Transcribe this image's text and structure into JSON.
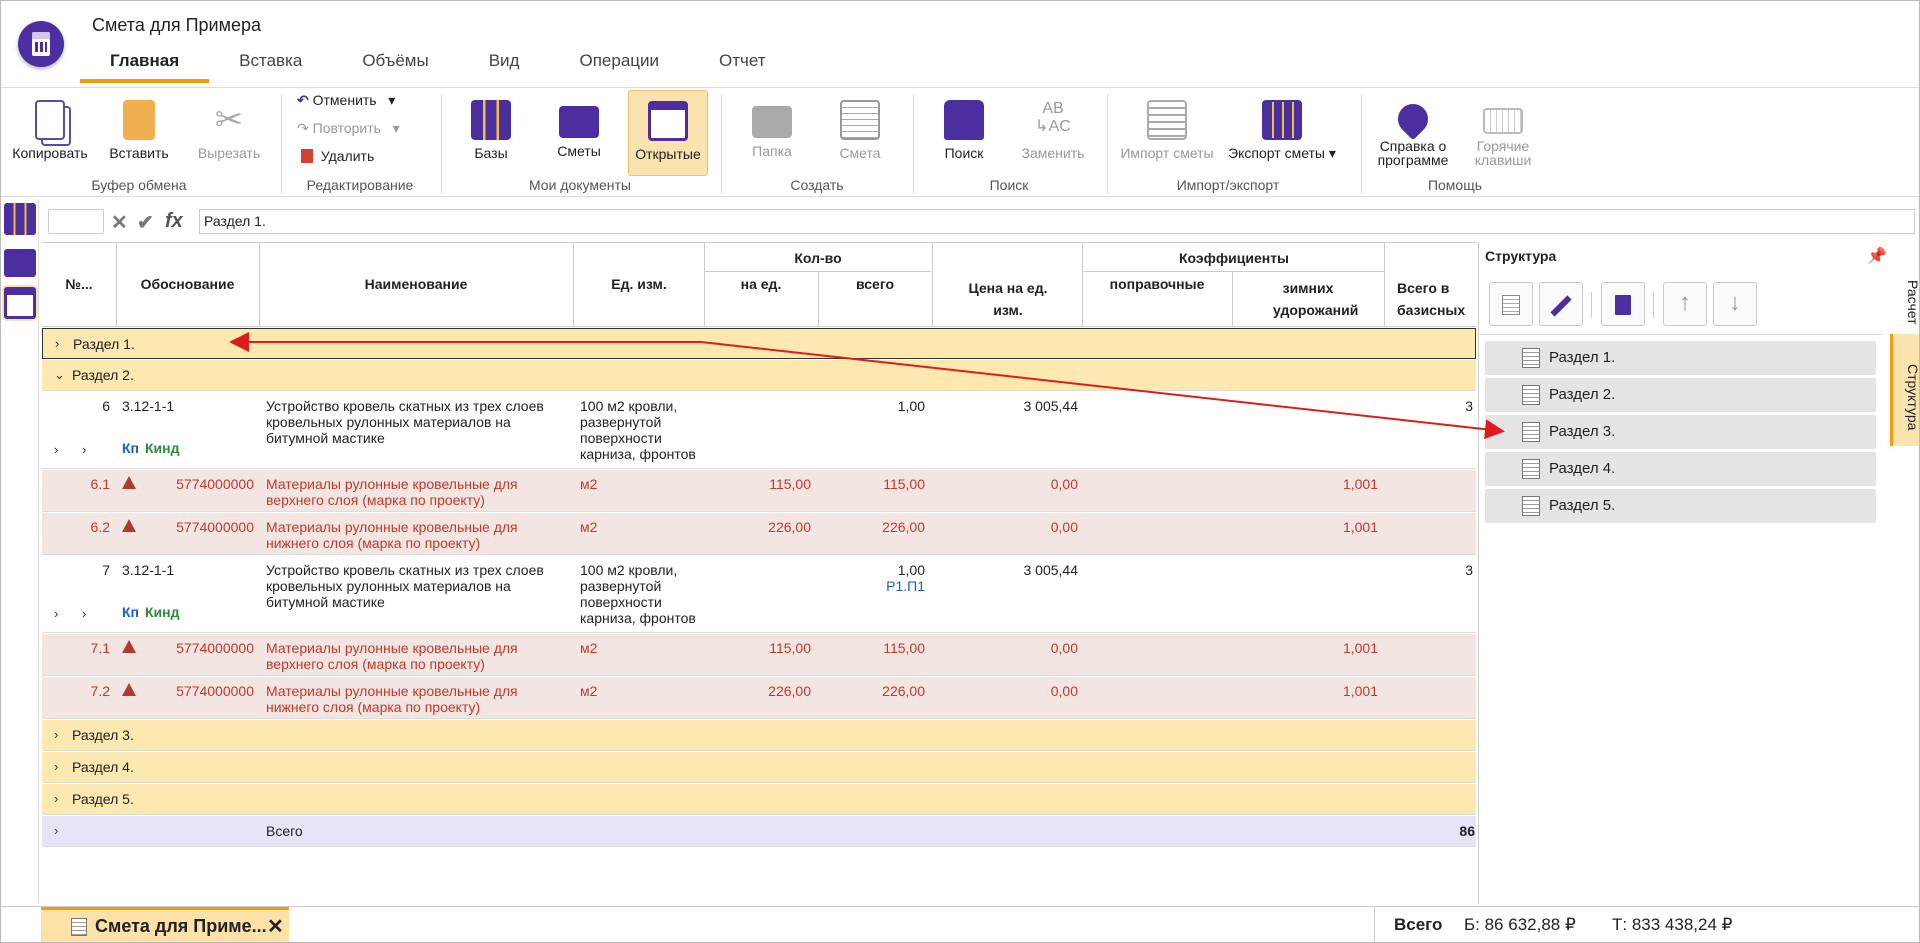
{
  "app": {
    "title": "Смета для Примера"
  },
  "tabs": [
    "Главная",
    "Вставка",
    "Объёмы",
    "Вид",
    "Операции",
    "Отчет"
  ],
  "ribbon": {
    "copy": "Копировать",
    "paste": "Вставить",
    "cut": "Вырезать",
    "clipboard_group": "Буфер обмена",
    "undo": "Отменить",
    "redo": "Повторить",
    "delete": "Удалить",
    "edit_group": "Редактирование",
    "bases": "Базы",
    "estimates": "Сметы",
    "opened": "Открытые",
    "mydocs_group": "Мои документы",
    "folder": "Папка",
    "estimate": "Смета",
    "create_group": "Создать",
    "search": "Поиск",
    "replace": "Заменить",
    "search_group": "Поиск",
    "import": "Импорт сметы",
    "export": "Экспорт сметы",
    "io_group": "Импорт/экспорт",
    "about": "Справка о программе",
    "hotkeys": "Горячие клавиши",
    "help_group": "Помощь"
  },
  "formula": {
    "value": "Раздел 1.",
    "fx": "fx"
  },
  "table": {
    "headers": {
      "num": "№...",
      "basis": "Обоснование",
      "name": "Наименование",
      "unit": "Ед. изм.",
      "qty": "Кол-во",
      "per_unit": "на ед.",
      "total": "всего",
      "price": "Цена на ед. изм.",
      "coef": "Коэффициенты",
      "corr": "поправочные",
      "winter": "зимних удорожаний",
      "base_total": "Всего в базисных"
    },
    "sections": [
      "Раздел 1.",
      "Раздел 2.",
      "Раздел 3.",
      "Раздел 4.",
      "Раздел 5."
    ],
    "items": [
      {
        "num": "6",
        "code": "3.12-1-1",
        "name": "Устройство кровель скатных из трех слоев кровельных рулонных материалов на битумной мастике",
        "unit": "100 м2 кровли, развернутой поверхности карниза, фронтов",
        "total": "1,00",
        "ref": "",
        "price": "3 005,44",
        "kp": "Кп",
        "kind": "Кинд",
        "edge": "3"
      },
      {
        "num": "7",
        "code": "3.12-1-1",
        "name": "Устройство кровель скатных из трех слоев кровельных рулонных материалов на битумной мастике",
        "unit": "100 м2 кровли, развернутой поверхности карниза, фронтов",
        "total": "1,00",
        "ref": "Р1.П1",
        "price": "3 005,44",
        "kp": "Кп",
        "kind": "Кинд",
        "edge": "3"
      }
    ],
    "materials": [
      {
        "num": "6.1",
        "code": "5774000000",
        "name": "Материалы рулонные кровельные для верхнего слоя (марка по проекту)",
        "unit": "м2",
        "per": "115,00",
        "total": "115,00",
        "price": "0,00",
        "winter": "1,001"
      },
      {
        "num": "6.2",
        "code": "5774000000",
        "name": "Материалы рулонные кровельные для нижнего слоя (марка по проекту)",
        "unit": "м2",
        "per": "226,00",
        "total": "226,00",
        "price": "0,00",
        "winter": "1,001"
      },
      {
        "num": "7.1",
        "code": "5774000000",
        "name": "Материалы рулонные кровельные для верхнего слоя (марка по проекту)",
        "unit": "м2",
        "per": "115,00",
        "total": "115,00",
        "price": "0,00",
        "winter": "1,001"
      },
      {
        "num": "7.2",
        "code": "5774000000",
        "name": "Материалы рулонные кровельные для нижнего слоя (марка по проекту)",
        "unit": "м2",
        "per": "226,00",
        "total": "226,00",
        "price": "0,00",
        "winter": "1,001"
      }
    ],
    "total_label": "Всего",
    "total_value": "86"
  },
  "structure": {
    "title": "Структура",
    "items": [
      "Раздел 1.",
      "Раздел 2.",
      "Раздел 3.",
      "Раздел 4.",
      "Раздел 5."
    ]
  },
  "side_tabs": [
    "Расчет",
    "Структура"
  ],
  "bottom": {
    "doc_tab": "Смета для Приме...",
    "total_label": "Всего",
    "base": "Б: 86 632,88 ₽",
    "current": "Т: 833 438,24 ₽"
  },
  "colors": {
    "accent": "#f39c12",
    "section": "#fde9b0",
    "material_text": "#c0392b",
    "arrow": "#e01b1b"
  }
}
